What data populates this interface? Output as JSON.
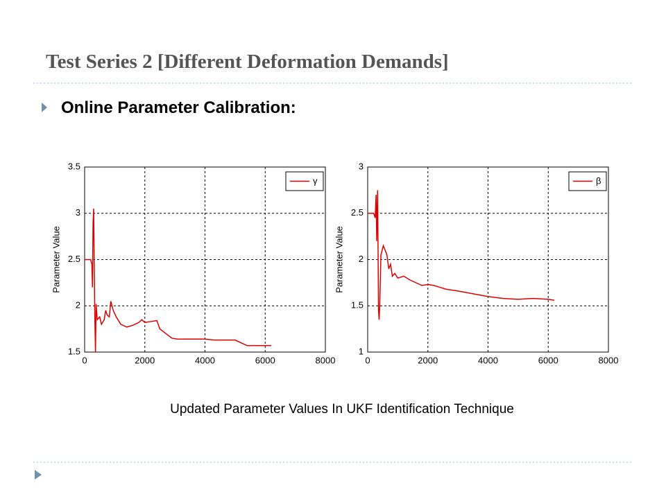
{
  "slide": {
    "title": "Test Series 2 [Different Deformation Demands]",
    "bullet": "Online Parameter Calibration:",
    "caption": "Updated Parameter Values In UKF Identification Technique"
  },
  "chart_data": [
    {
      "type": "line",
      "ylabel": "Parameter Value",
      "xlim": [
        0,
        8000
      ],
      "ylim": [
        1.5,
        3.5
      ],
      "xticks": [
        0,
        2000,
        4000,
        6000,
        8000
      ],
      "yticks": [
        1.5,
        2,
        2.5,
        3,
        3.5
      ],
      "grid": true,
      "legend": "upper right",
      "series": [
        {
          "name": "γ",
          "color": "#dd0000",
          "x": [
            0,
            200,
            240,
            260,
            280,
            300,
            320,
            340,
            360,
            380,
            420,
            500,
            560,
            650,
            700,
            750,
            820,
            870,
            950,
            1050,
            1200,
            1400,
            1600,
            1800,
            1900,
            2000,
            2200,
            2400,
            2500,
            2700,
            2900,
            3100,
            3500,
            4000,
            4300,
            5000,
            5200,
            5400,
            6200
          ],
          "values": [
            2.5,
            2.5,
            2.45,
            2.2,
            2.9,
            3.05,
            2.4,
            1.85,
            1.5,
            2.02,
            1.85,
            1.88,
            1.8,
            1.85,
            1.95,
            1.9,
            1.88,
            2.05,
            1.95,
            1.88,
            1.8,
            1.77,
            1.79,
            1.82,
            1.85,
            1.82,
            1.83,
            1.84,
            1.75,
            1.7,
            1.65,
            1.64,
            1.64,
            1.64,
            1.63,
            1.63,
            1.6,
            1.57,
            1.57
          ]
        }
      ]
    },
    {
      "type": "line",
      "ylabel": "Parameter Value",
      "xlim": [
        0,
        8000
      ],
      "ylim": [
        1,
        3
      ],
      "xticks": [
        0,
        2000,
        4000,
        6000,
        8000
      ],
      "yticks": [
        1,
        1.5,
        2,
        2.5,
        3
      ],
      "grid": true,
      "legend": "upper right",
      "series": [
        {
          "name": "β",
          "color": "#dd0000",
          "x": [
            0,
            200,
            250,
            280,
            300,
            330,
            360,
            380,
            400,
            440,
            480,
            520,
            580,
            640,
            700,
            760,
            820,
            900,
            1000,
            1200,
            1400,
            1600,
            1800,
            2000,
            2200,
            2400,
            2600,
            3000,
            3500,
            4000,
            4500,
            5000,
            5500,
            6000,
            6200
          ],
          "values": [
            2.5,
            2.5,
            2.45,
            2.7,
            2.2,
            2.75,
            1.45,
            1.35,
            1.5,
            2.05,
            2.1,
            2.15,
            2.1,
            2.05,
            1.9,
            1.95,
            1.82,
            1.85,
            1.8,
            1.82,
            1.78,
            1.75,
            1.72,
            1.73,
            1.72,
            1.7,
            1.68,
            1.66,
            1.63,
            1.6,
            1.58,
            1.57,
            1.58,
            1.57,
            1.56
          ]
        }
      ]
    }
  ]
}
